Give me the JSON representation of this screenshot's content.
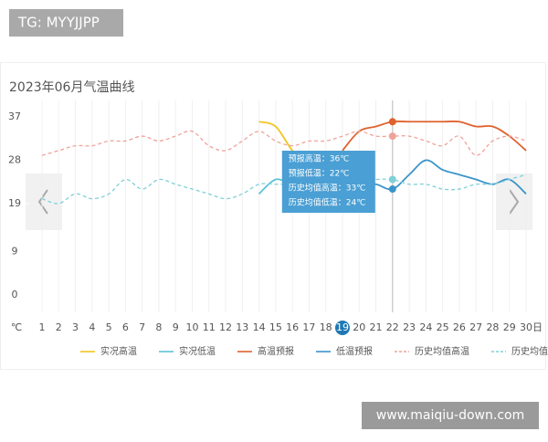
{
  "watermark_top": "TG: MYYJJPP",
  "watermark_bottom": "www.maiqiu-down.com",
  "chart_data": {
    "type": "line",
    "title": "2023年06月气温曲线",
    "y_unit": "℃",
    "x_unit": "日",
    "categories": [
      "1",
      "2",
      "3",
      "4",
      "5",
      "6",
      "7",
      "8",
      "9",
      "10",
      "11",
      "12",
      "13",
      "14",
      "15",
      "16",
      "17",
      "18",
      "19",
      "20",
      "21",
      "22",
      "23",
      "24",
      "25",
      "26",
      "27",
      "28",
      "29",
      "30"
    ],
    "ylim": [
      0,
      37
    ],
    "yticks": [
      0,
      9,
      19,
      28,
      37
    ],
    "grid": true,
    "highlight_category": "19",
    "hover_category": "22",
    "series": [
      {
        "name": "实况高温",
        "color": "#f2c522",
        "dashed": false,
        "values": [
          null,
          null,
          null,
          null,
          null,
          null,
          null,
          null,
          null,
          null,
          null,
          null,
          null,
          36,
          35,
          30,
          27,
          null,
          null,
          null,
          null,
          null,
          null,
          null,
          null,
          null,
          null,
          null,
          null,
          null
        ]
      },
      {
        "name": "实况低温",
        "color": "#5cc3d6",
        "dashed": false,
        "values": [
          null,
          null,
          null,
          null,
          null,
          null,
          null,
          null,
          null,
          null,
          null,
          null,
          null,
          21,
          24,
          23,
          24,
          24,
          null,
          null,
          null,
          null,
          null,
          null,
          null,
          null,
          null,
          null,
          null,
          null
        ]
      },
      {
        "name": "高温预报",
        "color": "#e0622e",
        "dashed": false,
        "values": [
          null,
          null,
          null,
          null,
          null,
          null,
          null,
          null,
          null,
          null,
          null,
          null,
          null,
          null,
          null,
          null,
          null,
          null,
          30,
          34,
          35,
          36,
          36,
          36,
          36,
          36,
          35,
          35,
          33,
          30
        ]
      },
      {
        "name": "低温预报",
        "color": "#3a94c9",
        "dashed": false,
        "values": [
          null,
          null,
          null,
          null,
          null,
          null,
          null,
          null,
          null,
          null,
          null,
          null,
          null,
          null,
          null,
          null,
          null,
          null,
          24,
          23,
          23,
          22,
          25,
          28,
          26,
          25,
          24,
          23,
          24,
          21
        ]
      },
      {
        "name": "历史均值高温",
        "color": "#eea39a",
        "dashed": true,
        "values": [
          29,
          30,
          31,
          31,
          32,
          32,
          33,
          32,
          33,
          34,
          31,
          30,
          32,
          34,
          32,
          31,
          32,
          32,
          33,
          34,
          33,
          33,
          33,
          32,
          31,
          33,
          29,
          32,
          33,
          32
        ]
      },
      {
        "name": "历史均值低温",
        "color": "#7fd0d8",
        "dashed": true,
        "values": [
          20,
          19,
          21,
          20,
          21,
          24,
          22,
          24,
          23,
          22,
          21,
          20,
          21,
          23,
          23,
          23,
          23,
          23,
          24,
          24,
          24,
          24,
          23,
          23,
          22,
          22,
          23,
          23,
          24,
          25
        ]
      }
    ],
    "tooltip": [
      "预报高温：36℃",
      "预报低温：22℃",
      "历史均值高温：33℃",
      "历史均值低温：24℃"
    ]
  }
}
